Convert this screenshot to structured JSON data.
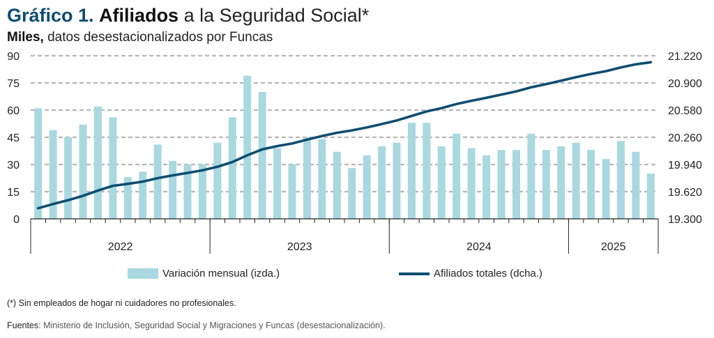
{
  "title": {
    "number": "Gráfico 1.",
    "bold": "Afiliados",
    "rest": "a la Seguridad Social*"
  },
  "subtitle": {
    "bold": "Miles,",
    "rest": "datos desestacionalizados por Funcas"
  },
  "legend": {
    "bars": "Variación mensual (izda.)",
    "line": "Afiliados totales (dcha.)"
  },
  "note": "(*) Sin empleados de hogar ni cuidadores no profesionales.",
  "source": {
    "label": "Fuentes",
    "text": ": Ministerio de Inclusión, Seguridad Social y Migraciones y Funcas (desestacionalización)."
  },
  "colors": {
    "bars": "#a9d8e0",
    "line": "#0e4d71",
    "title_accent": "#0e4d71"
  },
  "chart_data": {
    "type": "bar",
    "left_axis": {
      "ticks": [
        "0",
        "15",
        "30",
        "45",
        "60",
        "75",
        "90"
      ],
      "ylim": [
        0,
        90
      ]
    },
    "right_axis": {
      "ticks": [
        "19.300",
        "19.620",
        "19.940",
        "20.260",
        "20.580",
        "20.900",
        "21.220"
      ],
      "ylim": [
        19300,
        21220
      ]
    },
    "grid": "dashed horizontal",
    "year_labels": [
      "2022",
      "2023",
      "2024",
      "2025"
    ],
    "months_per_year": [
      12,
      12,
      12,
      6
    ],
    "x": [
      "2022-01",
      "2022-02",
      "2022-03",
      "2022-04",
      "2022-05",
      "2022-06",
      "2022-07",
      "2022-08",
      "2022-09",
      "2022-10",
      "2022-11",
      "2022-12",
      "2023-01",
      "2023-02",
      "2023-03",
      "2023-04",
      "2023-05",
      "2023-06",
      "2023-07",
      "2023-08",
      "2023-09",
      "2023-10",
      "2023-11",
      "2023-12",
      "2024-01",
      "2024-02",
      "2024-03",
      "2024-04",
      "2024-05",
      "2024-06",
      "2024-07",
      "2024-08",
      "2024-09",
      "2024-10",
      "2024-11",
      "2024-12",
      "2025-01",
      "2025-02",
      "2025-03",
      "2025-04",
      "2025-05",
      "2025-06"
    ],
    "series": [
      {
        "name": "Variación mensual (izda.)",
        "axis": "left",
        "kind": "bar",
        "values": [
          61,
          49,
          45,
          52,
          62,
          56,
          23,
          26,
          41,
          32,
          30,
          30,
          42,
          56,
          79,
          70,
          39,
          30,
          45,
          44,
          37,
          28,
          35,
          40,
          42,
          53,
          53,
          40,
          47,
          39,
          35,
          38,
          38,
          47,
          38,
          40,
          42,
          38,
          33,
          43,
          37,
          25
        ]
      },
      {
        "name": "Afiliados totales (dcha.)",
        "axis": "right",
        "kind": "line",
        "values": [
          19425,
          19474,
          19519,
          19571,
          19633,
          19689,
          19712,
          19738,
          19779,
          19811,
          19841,
          19871,
          19913,
          19969,
          20048,
          20118,
          20157,
          20187,
          20232,
          20276,
          20313,
          20341,
          20376,
          20416,
          20458,
          20511,
          20564,
          20604,
          20651,
          20690,
          20725,
          20763,
          20801,
          20848,
          20886,
          20926,
          20968,
          21006,
          21039,
          21082,
          21119,
          21144
        ]
      }
    ]
  }
}
